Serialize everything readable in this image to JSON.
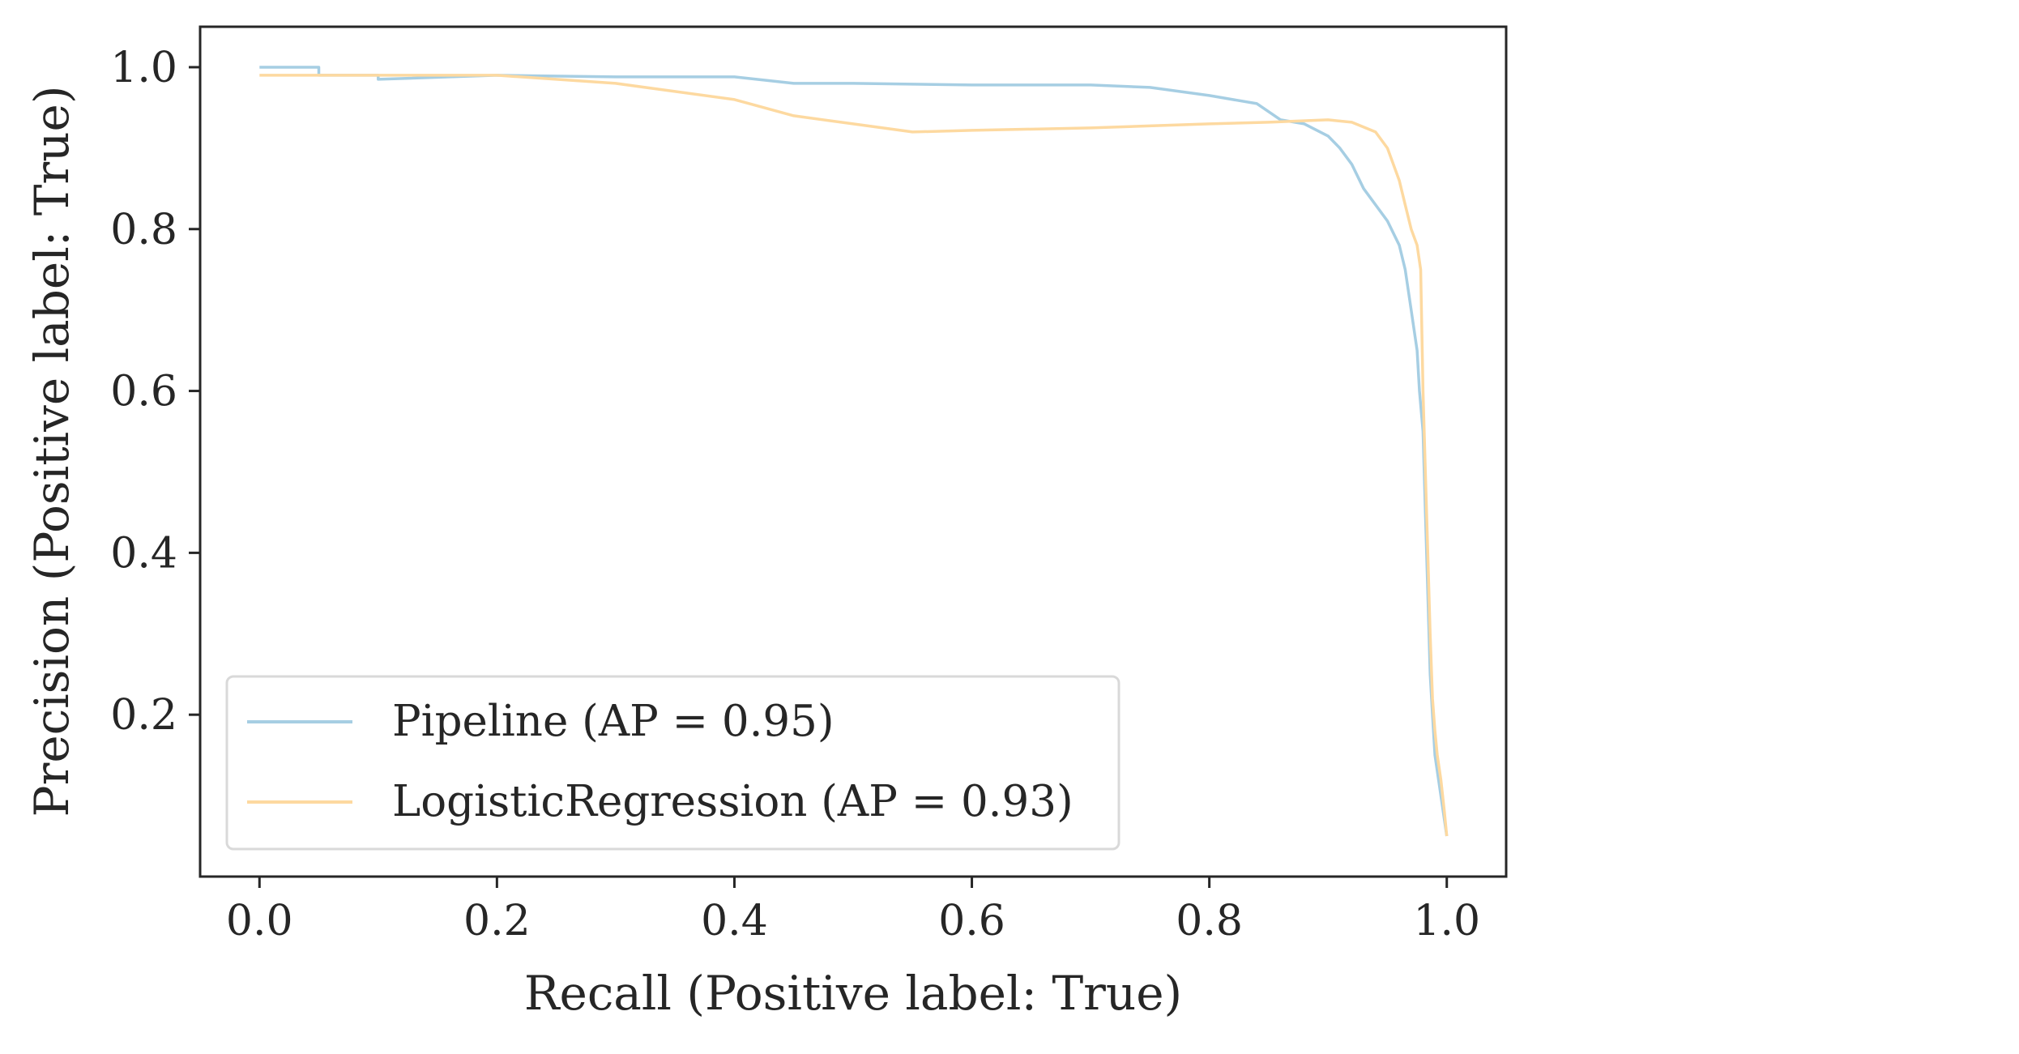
{
  "chart_data": {
    "type": "line",
    "title": "",
    "xlabel": "Recall (Positive label: True)",
    "ylabel": "Precision (Positive label: True)",
    "xlim": [
      -0.05,
      1.05
    ],
    "ylim": [
      0.0,
      1.05
    ],
    "xticks": [
      "0.0",
      "0.2",
      "0.4",
      "0.6",
      "0.8",
      "1.0"
    ],
    "yticks": [
      "0.2",
      "0.4",
      "0.6",
      "0.8",
      "1.0"
    ],
    "grid": false,
    "legend_position": "lower left",
    "series": [
      {
        "name": "Pipeline (AP = 0.95)",
        "color": "#a6cee3",
        "x": [
          0.0,
          0.05,
          0.05,
          0.1,
          0.1,
          0.2,
          0.3,
          0.4,
          0.45,
          0.5,
          0.6,
          0.7,
          0.75,
          0.8,
          0.84,
          0.86,
          0.88,
          0.9,
          0.91,
          0.92,
          0.93,
          0.94,
          0.95,
          0.96,
          0.965,
          0.97,
          0.975,
          0.977,
          0.98,
          0.982,
          0.984,
          0.986,
          0.988,
          0.99,
          0.993,
          0.996,
          1.0
        ],
        "y": [
          1.0,
          1.0,
          0.99,
          0.99,
          0.985,
          0.99,
          0.988,
          0.988,
          0.98,
          0.98,
          0.978,
          0.978,
          0.975,
          0.965,
          0.955,
          0.935,
          0.93,
          0.915,
          0.9,
          0.88,
          0.85,
          0.83,
          0.81,
          0.78,
          0.75,
          0.7,
          0.65,
          0.6,
          0.55,
          0.45,
          0.35,
          0.25,
          0.2,
          0.15,
          0.12,
          0.09,
          0.05
        ]
      },
      {
        "name": "LogisticRegression (AP = 0.93)",
        "color": "#fdd9a0",
        "x": [
          0.0,
          0.1,
          0.15,
          0.2,
          0.25,
          0.3,
          0.4,
          0.45,
          0.5,
          0.55,
          0.6,
          0.7,
          0.8,
          0.85,
          0.9,
          0.92,
          0.94,
          0.95,
          0.96,
          0.965,
          0.97,
          0.975,
          0.978,
          0.98,
          0.982,
          0.984,
          0.986,
          0.988,
          0.99,
          0.992,
          0.995,
          0.998,
          1.0
        ],
        "y": [
          0.99,
          0.99,
          0.99,
          0.99,
          0.985,
          0.98,
          0.96,
          0.94,
          0.93,
          0.92,
          0.922,
          0.925,
          0.93,
          0.932,
          0.935,
          0.932,
          0.92,
          0.9,
          0.86,
          0.83,
          0.8,
          0.78,
          0.75,
          0.6,
          0.5,
          0.4,
          0.3,
          0.22,
          0.18,
          0.15,
          0.12,
          0.08,
          0.05
        ]
      }
    ]
  }
}
